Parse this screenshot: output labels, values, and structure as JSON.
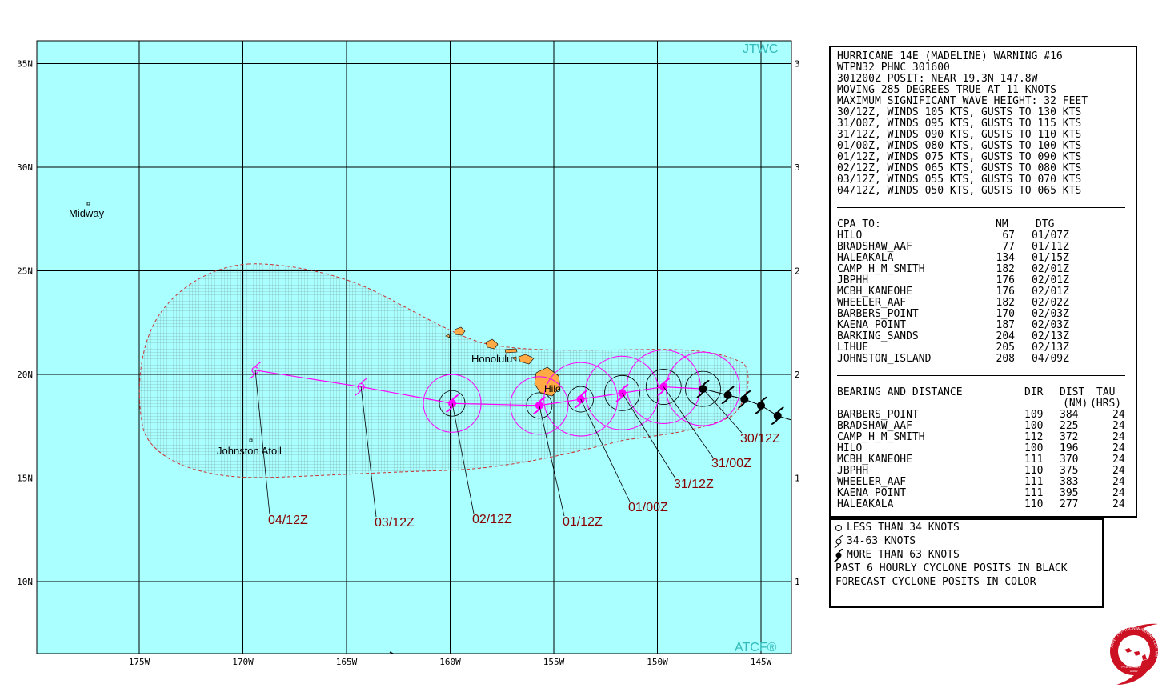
{
  "map": {
    "corner_labels": {
      "top_right": "JTWC",
      "bottom_right": "ATCF®"
    },
    "colors": {
      "ocean": "#aaffff",
      "track": "#ff00ff",
      "land": "#ffaa44",
      "shading_edge": "#cc3333",
      "label": "#880000"
    },
    "lat_labels": [
      "35N",
      "30N",
      "25N",
      "20N",
      "15N",
      "10N"
    ],
    "lon_labels": [
      "175W",
      "170W",
      "165W",
      "160W",
      "155W",
      "150W",
      "145W"
    ],
    "places": [
      "Midway",
      "Honolulu",
      "Hilo",
      "Johnston Atoll"
    ],
    "tau_labels": [
      "30/12Z",
      "31/00Z",
      "31/12Z",
      "01/00Z",
      "01/12Z",
      "02/12Z",
      "03/12Z",
      "04/12Z"
    ],
    "forecast_track": [
      {
        "tau": "30/12Z",
        "lat": 19.3,
        "lon": -147.8,
        "symbol": "hurricane"
      },
      {
        "tau": "31/00Z",
        "lat": 19.4,
        "lon": -149.7,
        "symbol": "hurricane"
      },
      {
        "tau": "31/12Z",
        "lat": 19.1,
        "lon": -151.7,
        "symbol": "hurricane"
      },
      {
        "tau": "01/00Z",
        "lat": 18.8,
        "lon": -153.7,
        "symbol": "hurricane"
      },
      {
        "tau": "01/12Z",
        "lat": 18.5,
        "lon": -155.7,
        "symbol": "hurricane"
      },
      {
        "tau": "02/12Z",
        "lat": 18.6,
        "lon": -159.9,
        "symbol": "hurricane"
      },
      {
        "tau": "03/12Z",
        "lat": 19.4,
        "lon": -164.3,
        "symbol": "storm"
      },
      {
        "tau": "04/12Z",
        "lat": 20.2,
        "lon": -169.4,
        "symbol": "storm"
      }
    ],
    "past_positions": [
      {
        "lat": 19.0,
        "lon": -146.6
      },
      {
        "lat": 18.8,
        "lon": -145.8
      },
      {
        "lat": 18.5,
        "lon": -145.0
      },
      {
        "lat": 18.0,
        "lon": -144.2
      }
    ]
  },
  "warning": {
    "header_lines": [
      "HURRICANE 14E (MADELINE) WARNING #16",
      "WTPN32 PHNC 301600",
      "301200Z POSIT: NEAR 19.3N 147.8W",
      "MOVING 285 DEGREES TRUE AT 11 KNOTS",
      "MAXIMUM SIGNIFICANT WAVE HEIGHT: 32 FEET",
      "30/12Z, WINDS 105 KTS, GUSTS TO 130 KTS",
      "31/00Z, WINDS 095 KTS, GUSTS TO 115 KTS",
      "31/12Z, WINDS 090 KTS, GUSTS TO 110 KTS",
      "01/00Z, WINDS 080 KTS, GUSTS TO 100 KTS",
      "01/12Z, WINDS 075 KTS, GUSTS TO 090 KTS",
      "02/12Z, WINDS 065 KTS, GUSTS TO 080 KTS",
      "03/12Z, WINDS 055 KTS, GUSTS TO 070 KTS",
      "04/12Z, WINDS 050 KTS, GUSTS TO 065 KTS"
    ],
    "cpa_header": [
      "CPA TO:",
      "NM",
      "DTG"
    ],
    "cpa_rows": [
      [
        "HILO",
        "67",
        "01/07Z"
      ],
      [
        "BRADSHAW_AAF",
        "77",
        "01/11Z"
      ],
      [
        "HALEAKALA",
        "134",
        "01/15Z"
      ],
      [
        "CAMP_H_M_SMITH",
        "182",
        "02/01Z"
      ],
      [
        "JBPHH",
        "176",
        "02/01Z"
      ],
      [
        "MCBH_KANEOHE",
        "176",
        "02/01Z"
      ],
      [
        "WHEELER_AAF",
        "182",
        "02/02Z"
      ],
      [
        "BARBERS_POINT",
        "170",
        "02/03Z"
      ],
      [
        "KAENA_POINT",
        "187",
        "02/03Z"
      ],
      [
        "BARKING_SANDS",
        "204",
        "02/13Z"
      ],
      [
        "LIHUE",
        "205",
        "02/13Z"
      ],
      [
        "JOHNSTON_ISLAND",
        "208",
        "04/09Z"
      ]
    ],
    "bd_header": [
      "BEARING AND DISTANCE",
      "DIR",
      "DIST",
      "TAU"
    ],
    "bd_subheader": [
      "(NM)",
      "(HRS)"
    ],
    "bd_rows": [
      [
        "BARBERS_POINT",
        "109",
        "384",
        "24"
      ],
      [
        "BRADSHAW_AAF",
        "100",
        "225",
        "24"
      ],
      [
        "CAMP_H_M_SMITH",
        "112",
        "372",
        "24"
      ],
      [
        "HILO",
        "100",
        "196",
        "24"
      ],
      [
        "MCBH_KANEOHE",
        "111",
        "370",
        "24"
      ],
      [
        "JBPHH",
        "110",
        "375",
        "24"
      ],
      [
        "WHEELER_AAF",
        "111",
        "383",
        "24"
      ],
      [
        "KAENA_POINT",
        "111",
        "395",
        "24"
      ],
      [
        "HALEAKALA",
        "110",
        "277",
        "24"
      ]
    ]
  },
  "legend": {
    "items": [
      "LESS THAN 34 KNOTS",
      "34-63 KNOTS",
      "MORE THAN 63 KNOTS"
    ],
    "notes": [
      "PAST 6 HOURLY CYCLONE POSITS IN BLACK",
      "FORECAST CYCLONE POSITS IN COLOR"
    ]
  },
  "logo": {
    "ring_text": "JOINT TYPHOON WARNING CENTER",
    "bottom_text": "PEARL HARBOR",
    "sub_text": "HAWAII"
  }
}
